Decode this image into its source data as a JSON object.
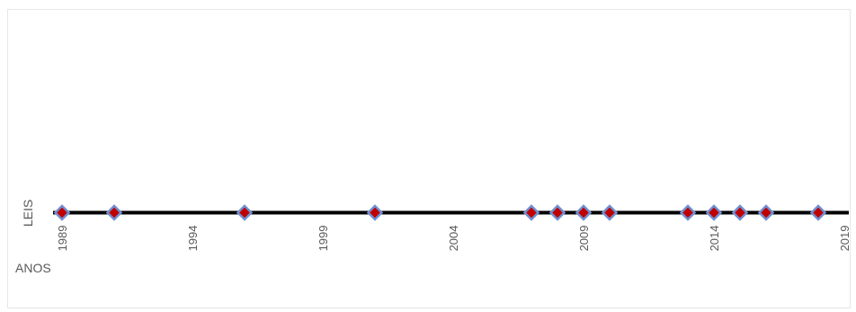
{
  "chart_data": {
    "type": "scatter",
    "ylabel": "LEIS",
    "xlabel": "ANOS",
    "xlim": [
      1989,
      2019
    ],
    "x_ticks": [
      "1989",
      "1994",
      "1999",
      "2004",
      "2009",
      "2014",
      "2019"
    ],
    "series": [
      {
        "x": [
          1989,
          1991,
          1996,
          2001,
          2007,
          2008,
          2009,
          2010,
          2013,
          2014,
          2015,
          2016,
          2018
        ],
        "y": [
          1,
          1,
          1,
          1,
          1,
          1,
          1,
          1,
          1,
          1,
          1,
          1,
          1
        ]
      }
    ],
    "colors": {
      "axis_line": "#000000",
      "marker_fill": "#c00000",
      "marker_stroke": "#6f8fd1",
      "text": "#595959"
    }
  }
}
